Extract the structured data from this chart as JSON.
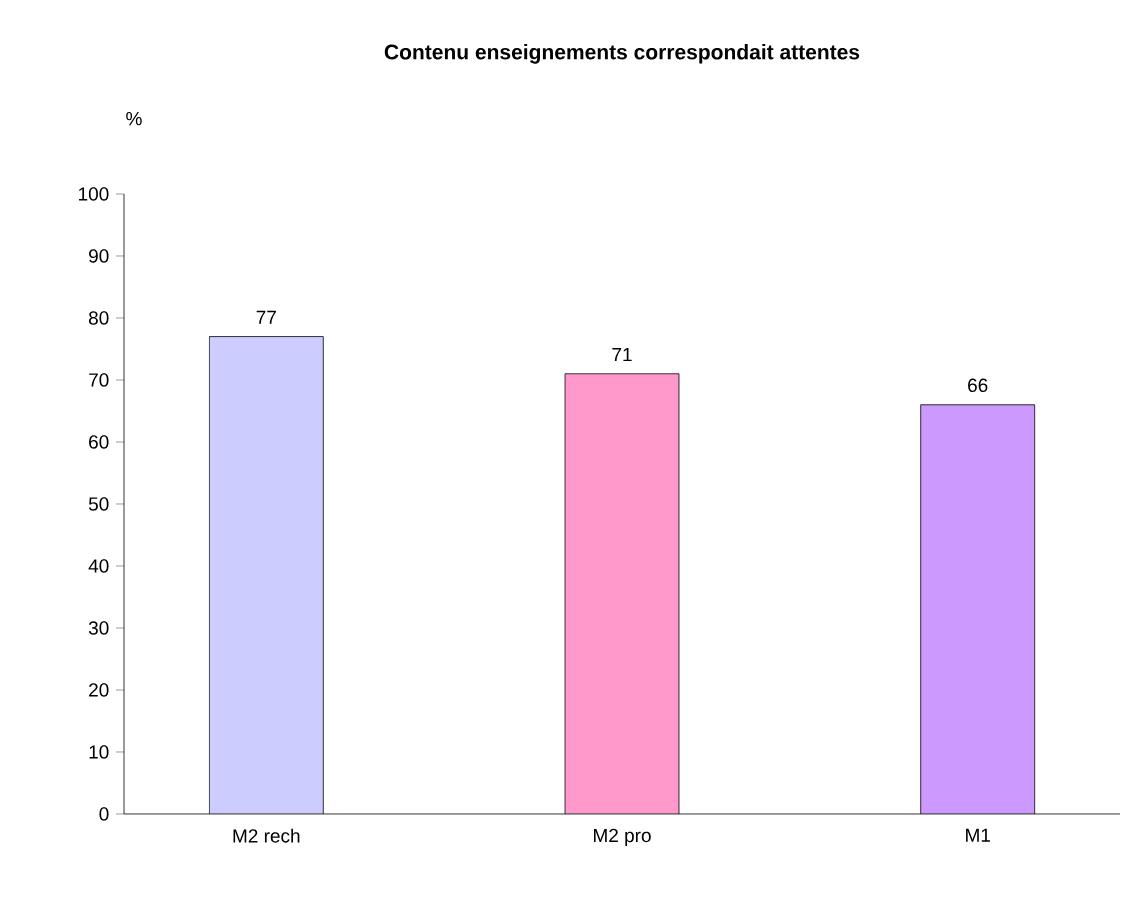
{
  "chart_data": {
    "type": "bar",
    "title": "Contenu enseignements correspondait attentes",
    "ylabel": "%",
    "categories": [
      "M2 rech",
      "M2 pro",
      "M1"
    ],
    "values": [
      77,
      71,
      66
    ],
    "colors": [
      "#ccccff",
      "#ff99cc",
      "#cc99ff"
    ],
    "ylim": [
      0,
      100
    ],
    "yticks": [
      0,
      10,
      20,
      30,
      40,
      50,
      60,
      70,
      80,
      90,
      100
    ],
    "data_labels": true,
    "grid": false
  }
}
